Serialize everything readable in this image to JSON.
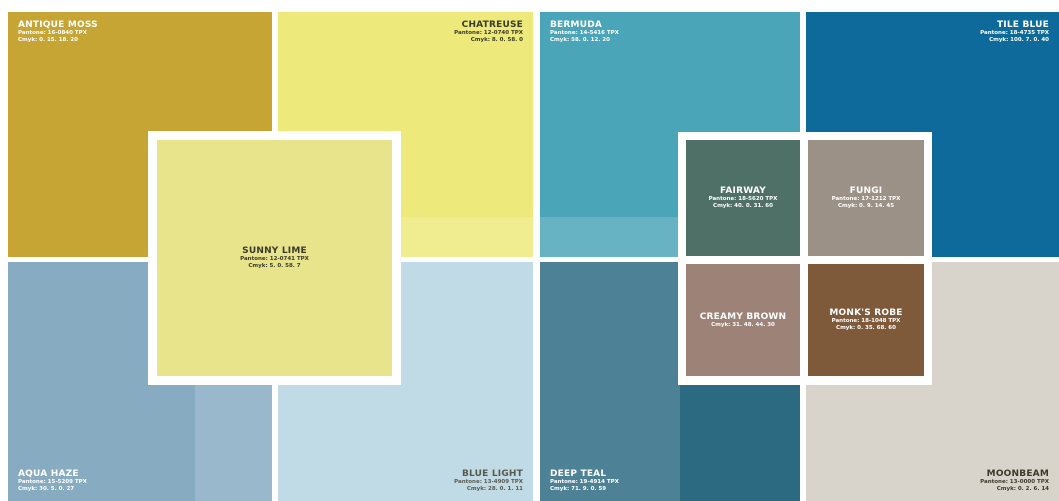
{
  "swatches": [
    {
      "name": "ANTIQUE MOSS",
      "pantone": "Pantone: 16-0840 TPX",
      "cmyk": "Cmyk: 0. 15. 18. 20",
      "color": "#c6a535"
    },
    {
      "name": "CHATREUSE",
      "pantone": "Pantone: 12-0740 TPX",
      "cmyk": "Cmyk: 8. 0. 58. 0",
      "color": "#ede97b"
    },
    {
      "name": "BERMUDA",
      "pantone": "Pantone: 14-5416 TPX",
      "cmyk": "Cmyk: 58. 0. 12. 20",
      "color": "#4aa5b8"
    },
    {
      "name": "TILE BLUE",
      "pantone": "Pantone: 18-4735 TPX",
      "cmyk": "Cmyk: 100. 7. 0. 40",
      "color": "#0e6a9a"
    },
    {
      "name": "AQUA HAZE",
      "pantone": "Pantone: 15-5209 TPX",
      "cmyk": "Cmyk: 30. 5. 0. 27",
      "color": "#87abc1"
    },
    {
      "name": "BLUE LIGHT",
      "pantone": "Pantone: 13-4909 TPX",
      "cmyk": "Cmyk: 28. 0. 1. 11",
      "color": "#b4d5e2"
    },
    {
      "name": "DEEP TEAL",
      "pantone": "Pantone: 19-4914 TPX",
      "cmyk": "Cmyk: 71. 9. 0. 59",
      "color": "#2c6a82"
    },
    {
      "name": "MOONBEAM",
      "pantone": "Pantone: 13-0000 TPX",
      "cmyk": "Cmyk: 0. 2. 6. 14",
      "color": "#d9d4cb"
    },
    {
      "name": "SUNNY LIME",
      "pantone": "Pantone: 12-0741 TPX",
      "cmyk": "Cmyk: 5. 0. 58. 7",
      "color": "#e8e48b"
    },
    {
      "name": "FAIRWAY",
      "pantone": "Pantone: 18-5620 TPX",
      "cmyk": "Cmyk: 40. 0. 31. 60",
      "color": "#4f7067"
    },
    {
      "name": "FUNGI",
      "pantone": "Pantone: 17-1212 TPX",
      "cmyk": "Cmyk: 0. 9. 14. 45",
      "color": "#9c9186"
    },
    {
      "name": "CREAMY BROWN",
      "cmyk": "Cmyk: 31. 48. 44. 30",
      "color": "#9c8277"
    },
    {
      "name": "MONK'S ROBE",
      "pantone": "Pantone: 18-1048 TPX",
      "cmyk": "Cmyk: 0. 35. 68. 60",
      "color": "#7e5a3a"
    }
  ]
}
